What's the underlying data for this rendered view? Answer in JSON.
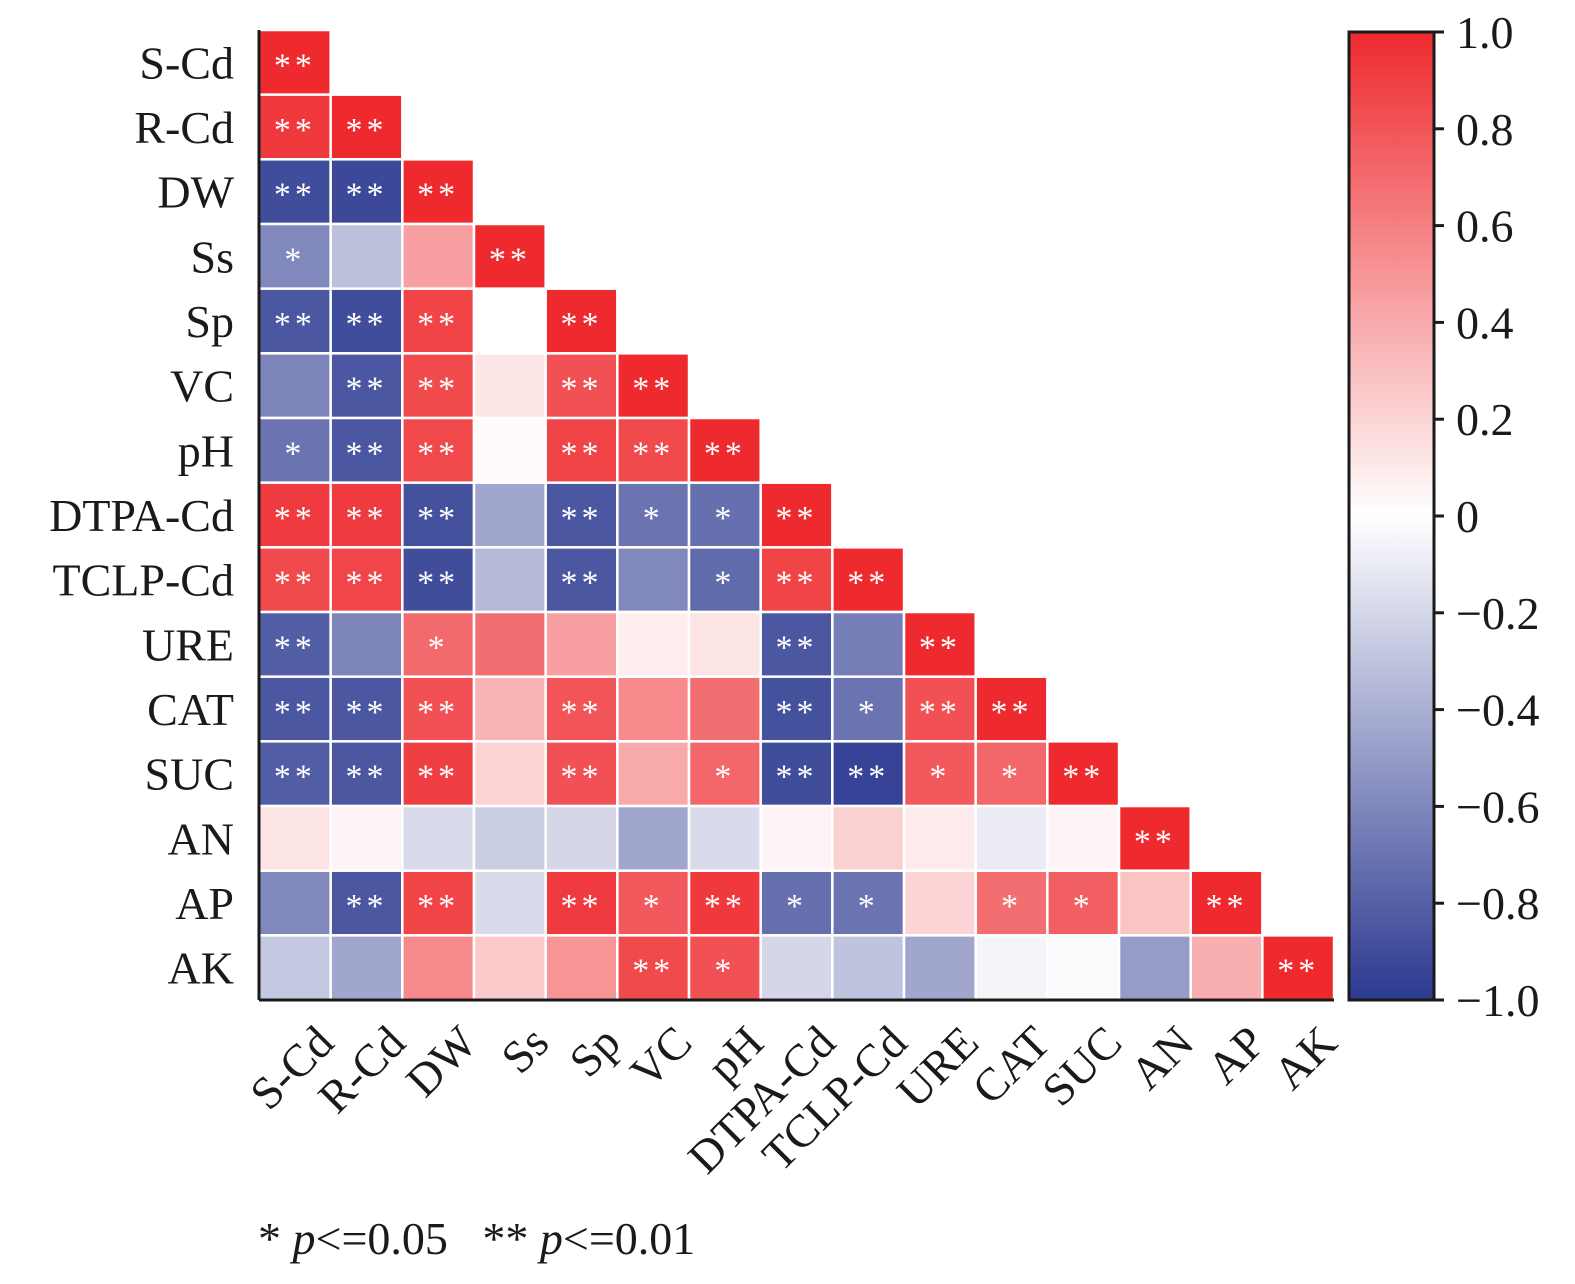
{
  "chart_data": {
    "type": "heatmap",
    "variables": [
      "S-Cd",
      "R-Cd",
      "DW",
      "Ss",
      "Sp",
      "VC",
      "pH",
      "DTPA-Cd",
      "TCLP-Cd",
      "URE",
      "CAT",
      "SUC",
      "AN",
      "AP",
      "AK"
    ],
    "matrix": [
      [
        1.0
      ],
      [
        0.93,
        1.0
      ],
      [
        -0.9,
        -0.92,
        1.0
      ],
      [
        -0.6,
        -0.32,
        0.45,
        1.0
      ],
      [
        -0.85,
        -0.9,
        0.88,
        0.0,
        1.0
      ],
      [
        -0.62,
        -0.85,
        0.85,
        0.12,
        0.82,
        1.0
      ],
      [
        -0.7,
        -0.85,
        0.86,
        0.02,
        0.88,
        0.85,
        1.0
      ],
      [
        0.92,
        0.92,
        -0.88,
        -0.45,
        -0.85,
        -0.7,
        -0.72,
        1.0
      ],
      [
        0.85,
        0.87,
        -0.9,
        -0.35,
        -0.85,
        -0.6,
        -0.75,
        0.88,
        1.0
      ],
      [
        -0.82,
        -0.62,
        0.7,
        0.68,
        0.45,
        0.08,
        0.12,
        -0.85,
        -0.65,
        1.0
      ],
      [
        -0.85,
        -0.85,
        0.82,
        0.35,
        0.8,
        0.55,
        0.68,
        -0.88,
        -0.7,
        0.82,
        1.0
      ],
      [
        -0.82,
        -0.85,
        0.9,
        0.2,
        0.82,
        0.4,
        0.72,
        -0.9,
        -0.95,
        0.78,
        0.72,
        1.0
      ],
      [
        0.12,
        0.05,
        -0.18,
        -0.25,
        -0.2,
        -0.45,
        -0.18,
        0.05,
        0.22,
        0.1,
        -0.1,
        0.05,
        1.0
      ],
      [
        -0.6,
        -0.85,
        0.88,
        -0.18,
        0.92,
        0.78,
        0.93,
        -0.72,
        -0.7,
        0.2,
        0.68,
        0.75,
        0.28,
        1.0
      ],
      [
        -0.28,
        -0.45,
        0.55,
        0.25,
        0.5,
        0.85,
        0.82,
        -0.2,
        -0.3,
        -0.45,
        -0.05,
        -0.02,
        -0.5,
        0.38,
        1.0
      ]
    ],
    "significance": [
      [
        "**"
      ],
      [
        "**",
        "**"
      ],
      [
        "**",
        "**",
        "**"
      ],
      [
        "*",
        "",
        "",
        "**"
      ],
      [
        "**",
        "**",
        "**",
        "",
        "**"
      ],
      [
        "",
        "**",
        "**",
        "",
        "**",
        "**"
      ],
      [
        "*",
        "**",
        "**",
        "",
        "**",
        "**",
        "**"
      ],
      [
        "**",
        "**",
        "**",
        "",
        "**",
        "*",
        "*",
        "**"
      ],
      [
        "**",
        "**",
        "**",
        "",
        "**",
        "",
        "*",
        "**",
        "**"
      ],
      [
        "**",
        "",
        "*",
        "",
        "",
        "",
        "",
        "**",
        "",
        "**"
      ],
      [
        "**",
        "**",
        "**",
        "",
        "**",
        "",
        "",
        "**",
        "*",
        "**",
        "**"
      ],
      [
        "**",
        "**",
        "**",
        "",
        "**",
        "",
        "*",
        "**",
        "**",
        "*",
        "*",
        "**"
      ],
      [
        "",
        "",
        "",
        "",
        "",
        "",
        "",
        "",
        "",
        "",
        "",
        "",
        "**"
      ],
      [
        "",
        "**",
        "**",
        "",
        "**",
        "*",
        "**",
        "*",
        "*",
        "",
        "*",
        "*",
        "",
        "**"
      ],
      [
        "",
        "",
        "",
        "",
        "",
        "**",
        "*",
        "",
        "",
        "",
        "",
        "",
        "",
        "",
        "**"
      ]
    ],
    "colorbar": {
      "min": -1.0,
      "max": 1.0,
      "ticks": [
        "1.0",
        "0.8",
        "0.6",
        "0.4",
        "0.2",
        "0",
        "−0.2",
        "−0.4",
        "−0.6",
        "−0.8",
        "−1.0"
      ],
      "tick_values": [
        1.0,
        0.8,
        0.6,
        0.4,
        0.2,
        0,
        -0.2,
        -0.4,
        -0.6,
        -0.8,
        -1.0
      ],
      "colors": {
        "negative": "#2b3990",
        "zero": "#ffffff",
        "positive": "#ee2a2e"
      }
    },
    "legend_note": {
      "one_star": "*",
      "two_star": "**",
      "p_symbol": "p",
      "one_star_threshold": "<=0.05",
      "two_star_threshold": "<=0.01"
    }
  }
}
